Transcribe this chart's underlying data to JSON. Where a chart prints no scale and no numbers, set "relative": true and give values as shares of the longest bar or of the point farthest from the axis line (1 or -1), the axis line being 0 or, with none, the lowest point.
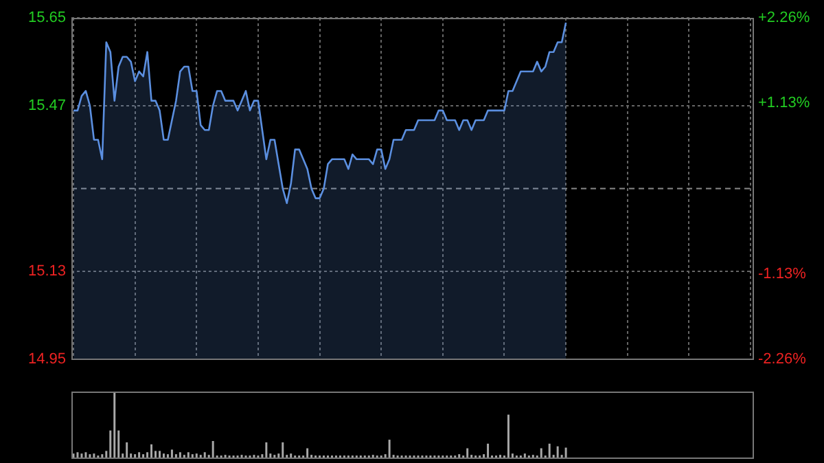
{
  "chart_data": [
    {
      "type": "area",
      "marker": "none",
      "grid": true,
      "tick_labels": "y",
      "categories": [
        null,
        null,
        null,
        null,
        null,
        null,
        null,
        null,
        null,
        null,
        null,
        null,
        null,
        null,
        null,
        null,
        null,
        null,
        null,
        null,
        null,
        null,
        null,
        null,
        null,
        null,
        null,
        null,
        null,
        null,
        null,
        null,
        null,
        null,
        null,
        null,
        null,
        null,
        null,
        null,
        null,
        null,
        null,
        null,
        null,
        null,
        null,
        null,
        null,
        null,
        null,
        null,
        null,
        null,
        null,
        null,
        null,
        null,
        null,
        null,
        null,
        null,
        null,
        null,
        null,
        null,
        null,
        null,
        null,
        null,
        null,
        null,
        null,
        null,
        null,
        null,
        null,
        null,
        null,
        null,
        null,
        null,
        null,
        null,
        null,
        null,
        null,
        null,
        null,
        null,
        null,
        null,
        null,
        null,
        null,
        null,
        null,
        null,
        null,
        null,
        null,
        null,
        null,
        null,
        null,
        null,
        null,
        null,
        null,
        null,
        null,
        null,
        null,
        null,
        null,
        null,
        null,
        null,
        null,
        null,
        null,
        null,
        null,
        null,
        null,
        null,
        null,
        null,
        null,
        null,
        null,
        null,
        null,
        null,
        null,
        null,
        null,
        null,
        null,
        null,
        null,
        null,
        null,
        null,
        null,
        null,
        null,
        null,
        null,
        null,
        null,
        null,
        null,
        null,
        null,
        null,
        null,
        null,
        null,
        null,
        null,
        null,
        null,
        null,
        null,
        null
      ],
      "series": [
        {
          "color": "#5b8fe0",
          "values": [
            15.46,
            15.46,
            15.49,
            15.5,
            15.47,
            15.4,
            15.4,
            15.36,
            15.6,
            15.58,
            15.48,
            15.55,
            15.57,
            15.57,
            15.56,
            15.52,
            15.54,
            15.53,
            15.58,
            15.48,
            15.48,
            15.46,
            15.4,
            15.4,
            15.44,
            15.48,
            15.54,
            15.55,
            15.55,
            15.5,
            15.5,
            15.43,
            15.42,
            15.42,
            15.47,
            15.5,
            15.5,
            15.48,
            15.48,
            15.48,
            15.46,
            15.48,
            15.5,
            15.46,
            15.48,
            15.48,
            15.42,
            15.36,
            15.4,
            15.4,
            15.35,
            15.3,
            15.27,
            15.31,
            15.38,
            15.38,
            15.36,
            15.34,
            15.3,
            15.28,
            15.28,
            15.3,
            15.35,
            15.36,
            15.36,
            15.36,
            15.36,
            15.34,
            15.37,
            15.36,
            15.36,
            15.36,
            15.36,
            15.35,
            15.38,
            15.38,
            15.34,
            15.36,
            15.4,
            15.4,
            15.4,
            15.42,
            15.42,
            15.42,
            15.44,
            15.44,
            15.44,
            15.44,
            15.44,
            15.46,
            15.46,
            15.44,
            15.44,
            15.44,
            15.42,
            15.44,
            15.44,
            15.42,
            15.44,
            15.44,
            15.44,
            15.46,
            15.46,
            15.46,
            15.46,
            15.46,
            15.5,
            15.5,
            15.52,
            15.54,
            15.54,
            15.54,
            15.54,
            15.56,
            15.54,
            15.55,
            15.58,
            15.58,
            15.6,
            15.6,
            15.64,
            null,
            null,
            null,
            null,
            null,
            null,
            null,
            null,
            null,
            null,
            null,
            null,
            null,
            null,
            null,
            null,
            null,
            null,
            null,
            null,
            null,
            null,
            null,
            null,
            null,
            null,
            null,
            null,
            null,
            null,
            null,
            null,
            null,
            null,
            null,
            null,
            null,
            null,
            null,
            null,
            null,
            null,
            null,
            null,
            null
          ]
        }
      ],
      "ylim": [
        14.95,
        15.65
      ],
      "yticks": [
        14.95,
        15.13,
        15.47,
        15.65
      ],
      "y2lim": [
        -2.26,
        2.26
      ],
      "y2ticks": [
        {
          "value": -2.26,
          "label": "-2.26%"
        },
        {
          "value": -1.13,
          "label": "-1.13%"
        },
        {
          "value": 1.13,
          "label": "+1.13%"
        },
        {
          "value": 2.26,
          "label": "+2.26%"
        }
      ],
      "ref_lines": [
        {
          "axis": "y",
          "value": 15.3,
          "line_style": "dashed",
          "color": "#8a8a8a"
        }
      ]
    },
    {
      "type": "bar",
      "relative": true,
      "tick_labels": false,
      "color": "#a8a8a8",
      "categories": [
        null,
        null,
        null,
        null,
        null,
        null,
        null,
        null,
        null,
        null,
        null,
        null,
        null,
        null,
        null,
        null,
        null,
        null,
        null,
        null,
        null,
        null,
        null,
        null,
        null,
        null,
        null,
        null,
        null,
        null,
        null,
        null,
        null,
        null,
        null,
        null,
        null,
        null,
        null,
        null,
        null,
        null,
        null,
        null,
        null,
        null,
        null,
        null,
        null,
        null,
        null,
        null,
        null,
        null,
        null,
        null,
        null,
        null,
        null,
        null,
        null,
        null,
        null,
        null,
        null,
        null,
        null,
        null,
        null,
        null,
        null,
        null,
        null,
        null,
        null,
        null,
        null,
        null,
        null,
        null,
        null,
        null,
        null,
        null,
        null,
        null,
        null,
        null,
        null,
        null,
        null,
        null,
        null,
        null,
        null,
        null,
        null,
        null,
        null,
        null,
        null,
        null,
        null,
        null,
        null,
        null,
        null,
        null,
        null,
        null,
        null,
        null,
        null,
        null,
        null,
        null,
        null,
        null,
        null,
        null,
        null,
        null,
        null,
        null,
        null,
        null,
        null,
        null,
        null,
        null,
        null,
        null,
        null,
        null,
        null,
        null,
        null,
        null,
        null,
        null,
        null,
        null,
        null,
        null,
        null,
        null,
        null,
        null,
        null,
        null,
        null,
        null,
        null,
        null,
        null,
        null,
        null,
        null,
        null,
        null,
        null,
        null,
        null,
        null,
        null,
        null
      ],
      "values": [
        0.06,
        0.08,
        0.06,
        0.08,
        0.05,
        0.06,
        0.03,
        0.05,
        0.1,
        0.41,
        1,
        0.41,
        0.06,
        0.23,
        0.06,
        0.05,
        0.08,
        0.05,
        0.08,
        0.2,
        0.1,
        0.1,
        0.06,
        0.05,
        0.12,
        0.05,
        0.08,
        0.04,
        0.08,
        0.05,
        0.06,
        0.04,
        0.08,
        0.04,
        0.25,
        0.03,
        0.03,
        0.04,
        0.03,
        0.03,
        0.03,
        0.04,
        0.03,
        0.03,
        0.04,
        0.03,
        0.05,
        0.23,
        0.06,
        0.04,
        0.06,
        0.23,
        0.04,
        0.06,
        0.03,
        0.03,
        0.03,
        0.14,
        0.04,
        0.03,
        0.03,
        0.03,
        0.03,
        0.03,
        0.03,
        0.03,
        0.03,
        0.03,
        0.03,
        0.03,
        0.03,
        0.03,
        0.03,
        0.04,
        0.03,
        0.03,
        0.05,
        0.27,
        0.04,
        0.03,
        0.03,
        0.03,
        0.03,
        0.03,
        0.03,
        0.03,
        0.03,
        0.03,
        0.03,
        0.03,
        0.03,
        0.03,
        0.03,
        0.03,
        0.05,
        0.03,
        0.14,
        0.04,
        0.03,
        0.03,
        0.05,
        0.21,
        0.03,
        0.03,
        0.04,
        0.03,
        0.65,
        0.06,
        0.03,
        0.03,
        0.06,
        0.03,
        0.04,
        0.03,
        0.14,
        0.03,
        0.21,
        0.04,
        0.17,
        0.04,
        0.15,
        null,
        null,
        null,
        null,
        null,
        null,
        null,
        null,
        null,
        null,
        null,
        null,
        null,
        null,
        null,
        null,
        null,
        null,
        null,
        null,
        null,
        null,
        null,
        null,
        null,
        null,
        null,
        null,
        null,
        null,
        null,
        null,
        null,
        null,
        null,
        null,
        null,
        null,
        null,
        null,
        null,
        null,
        null,
        null,
        null
      ]
    }
  ]
}
